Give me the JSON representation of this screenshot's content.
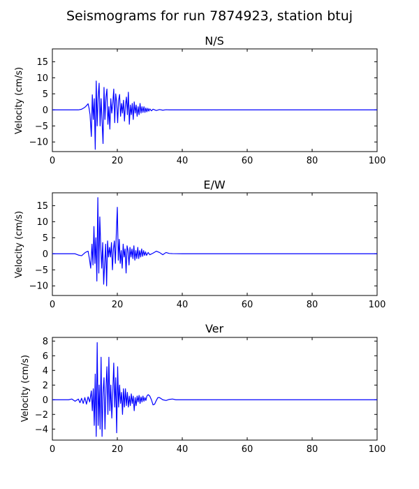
{
  "figure": {
    "title": "Seismograms for run 7874923, station btuj"
  },
  "chart_data": [
    {
      "type": "line",
      "title": "N/S",
      "ylabel": "Velocity (cm/s)",
      "xlim": [
        0,
        100
      ],
      "ylim": [
        -13,
        19
      ],
      "xticks": [
        0,
        20,
        40,
        60,
        80,
        100
      ],
      "yticks": [
        -10,
        -5,
        0,
        5,
        10,
        15
      ],
      "series": [
        {
          "color": "#0000ff",
          "x": [
            0,
            8,
            9,
            10,
            10.5,
            11,
            11.3,
            11.6,
            12.0,
            12.3,
            12.6,
            12.9,
            13.2,
            13.5,
            13.8,
            14.1,
            14.4,
            14.7,
            15.0,
            15.3,
            15.6,
            15.9,
            16.2,
            16.5,
            16.8,
            17.1,
            17.4,
            17.7,
            18.0,
            18.3,
            18.6,
            18.9,
            19.2,
            19.5,
            19.8,
            20.1,
            20.4,
            20.7,
            21.0,
            21.3,
            21.6,
            21.9,
            22.2,
            22.5,
            22.8,
            23.1,
            23.4,
            23.7,
            24.0,
            24.3,
            24.6,
            24.9,
            25.2,
            25.5,
            25.8,
            26.1,
            26.4,
            26.7,
            27.0,
            27.3,
            27.6,
            27.9,
            28.2,
            28.5,
            28.8,
            29.1,
            29.4,
            29.7,
            30.0,
            30.5,
            31,
            32,
            33,
            34,
            35,
            36,
            40,
            100
          ],
          "y": [
            0,
            0,
            0.2,
            0.8,
            1.3,
            1.9,
            0.5,
            -1.5,
            -8.3,
            4.7,
            -3.0,
            3.5,
            -12.3,
            9.0,
            -5.0,
            4.2,
            8.3,
            -5.0,
            3.5,
            -3.5,
            -10.5,
            7.0,
            -3.0,
            4.0,
            6.5,
            -4.5,
            1.0,
            -6.0,
            3.5,
            -1.0,
            2.0,
            6.5,
            -4.0,
            5.0,
            2.5,
            -4.0,
            3.0,
            4.8,
            -2.0,
            2.0,
            -1.0,
            3.0,
            -3.5,
            1.5,
            4.0,
            -1.5,
            5.5,
            -4.5,
            1.5,
            -1.5,
            2.0,
            -3.0,
            2.5,
            -1.0,
            1.5,
            -2.0,
            1.0,
            -1.5,
            2.0,
            -1.0,
            1.0,
            -0.8,
            1.0,
            -0.8,
            0.6,
            -0.6,
            0.5,
            -0.4,
            0.3,
            -0.3,
            0.2,
            -0.2,
            0.1,
            -0.1,
            0.05,
            0,
            0,
            0
          ]
        }
      ]
    },
    {
      "type": "line",
      "title": "E/W",
      "ylabel": "Velocity (cm/s)",
      "xlim": [
        0,
        100
      ],
      "ylim": [
        -13,
        19
      ],
      "xticks": [
        0,
        20,
        40,
        60,
        80,
        100
      ],
      "yticks": [
        -10,
        -5,
        0,
        5,
        10,
        15
      ],
      "series": [
        {
          "color": "#0000ff",
          "x": [
            0,
            7,
            8,
            9,
            10,
            10.5,
            11,
            11.4,
            11.8,
            12.2,
            12.5,
            12.8,
            13.1,
            13.4,
            13.7,
            14.0,
            14.3,
            14.6,
            14.9,
            15.2,
            15.5,
            15.8,
            16.1,
            16.4,
            16.7,
            17.0,
            17.3,
            17.6,
            17.9,
            18.2,
            18.5,
            18.8,
            19.1,
            19.4,
            19.7,
            20.0,
            20.3,
            20.6,
            20.9,
            21.2,
            21.5,
            21.8,
            22.1,
            22.4,
            22.7,
            23.0,
            23.3,
            23.6,
            23.9,
            24.2,
            24.5,
            24.8,
            25.1,
            25.4,
            25.7,
            26.0,
            26.3,
            26.6,
            26.9,
            27.2,
            27.5,
            27.8,
            28.1,
            28.4,
            28.7,
            29.0,
            29.5,
            30,
            31,
            32,
            33,
            34,
            35,
            36,
            37,
            40,
            100
          ],
          "y": [
            0,
            0,
            -0.4,
            -0.6,
            0.3,
            0.6,
            0.8,
            -1.5,
            -4.5,
            3.0,
            -3.5,
            8.5,
            -3.0,
            5.0,
            -8.5,
            17.5,
            -6.0,
            11.5,
            2.0,
            -4.5,
            3.5,
            -9.5,
            -3.0,
            3.0,
            -10.0,
            4.0,
            -1.0,
            2.0,
            -1.0,
            3.5,
            -5.0,
            1.5,
            4.0,
            -3.0,
            6.5,
            14.5,
            -2.0,
            4.5,
            -3.0,
            1.0,
            -4.5,
            3.0,
            -1.0,
            1.5,
            -6.0,
            2.5,
            1.0,
            -3.5,
            2.0,
            -1.0,
            1.5,
            -1.5,
            2.5,
            -2.0,
            1.0,
            -1.5,
            2.0,
            -1.5,
            1.0,
            -1.0,
            1.5,
            -0.8,
            1.0,
            -0.5,
            0.6,
            -0.5,
            0.4,
            -0.3,
            0.2,
            0.8,
            0.4,
            -0.3,
            0.4,
            0.1,
            0.05,
            0,
            0
          ]
        }
      ]
    },
    {
      "type": "line",
      "title": "Ver",
      "ylabel": "Velocity (cm/s)",
      "xlim": [
        0,
        100
      ],
      "ylim": [
        -5.5,
        8.5
      ],
      "xticks": [
        0,
        20,
        40,
        60,
        80,
        100
      ],
      "yticks": [
        -4,
        -2,
        0,
        2,
        4,
        6,
        8
      ],
      "series": [
        {
          "color": "#0000ff",
          "x": [
            0,
            5,
            6,
            7,
            8,
            8.5,
            9,
            9.5,
            10,
            10.5,
            11,
            11.5,
            12,
            12.3,
            12.6,
            12.9,
            13.2,
            13.5,
            13.8,
            14.1,
            14.4,
            14.7,
            15.0,
            15.3,
            15.6,
            15.9,
            16.2,
            16.5,
            16.8,
            17.1,
            17.4,
            17.7,
            18.0,
            18.3,
            18.6,
            18.9,
            19.2,
            19.5,
            19.8,
            20.1,
            20.4,
            20.7,
            21.0,
            21.3,
            21.6,
            21.9,
            22.2,
            22.5,
            22.8,
            23.1,
            23.4,
            23.7,
            24.0,
            24.3,
            24.6,
            24.9,
            25.2,
            25.5,
            25.8,
            26.1,
            26.4,
            26.7,
            27.0,
            27.3,
            27.6,
            27.9,
            28.2,
            28.5,
            28.8,
            29.1,
            29.5,
            30,
            30.5,
            31,
            31.5,
            32,
            32.5,
            33,
            34,
            35,
            36,
            37,
            38,
            40,
            100
          ],
          "y": [
            0,
            0,
            0.1,
            -0.2,
            0.1,
            -0.4,
            0.2,
            -0.5,
            0.3,
            -0.6,
            0.4,
            -0.3,
            1.2,
            -1.5,
            1.5,
            -3.5,
            3.5,
            -5.0,
            7.8,
            -3.5,
            2.0,
            -4.0,
            5.8,
            -5.0,
            1.0,
            3.0,
            -4.0,
            1.5,
            4.5,
            -2.0,
            5.8,
            -1.5,
            2.0,
            -2.5,
            1.0,
            5.0,
            -1.0,
            3.0,
            -4.5,
            4.5,
            -1.0,
            2.0,
            -0.5,
            1.0,
            -2.0,
            1.5,
            -1.0,
            1.5,
            -0.8,
            1.0,
            -1.0,
            0.5,
            -0.8,
            0.8,
            -0.5,
            0.5,
            -1.5,
            0.3,
            -0.8,
            0.5,
            -0.3,
            0.6,
            -0.5,
            0.4,
            -0.3,
            0.5,
            -0.2,
            0.3,
            -0.1,
            0.5,
            0.7,
            0.5,
            0.0,
            -0.7,
            -0.6,
            -0.1,
            0.3,
            0.3,
            0.0,
            -0.1,
            0.05,
            0.1,
            0.0,
            0,
            0
          ]
        }
      ]
    }
  ]
}
